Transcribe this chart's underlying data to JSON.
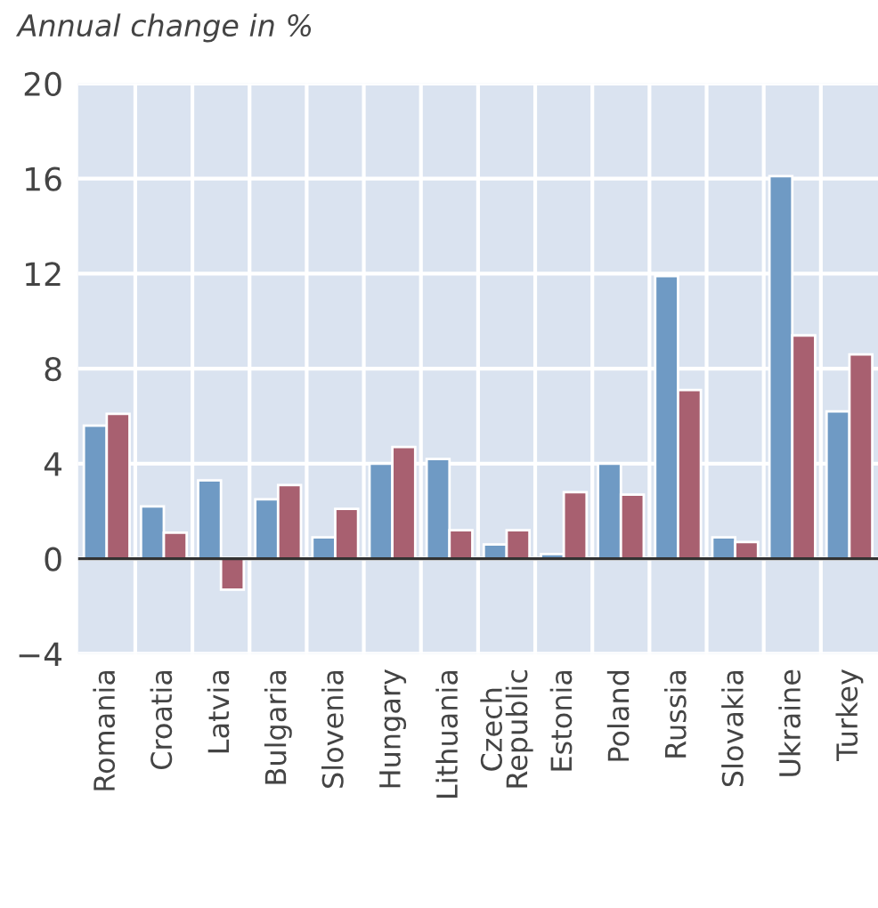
{
  "chart_data": {
    "type": "bar",
    "ylabel": "Annual change in %",
    "categories": [
      "Romania",
      "Croatia",
      "Latvia",
      "Bulgaria",
      "Slovenia",
      "Hungary",
      "Lithuania",
      "Czech Republic",
      "Estonia",
      "Poland",
      "Russia",
      "Slovakia",
      "Ukraine",
      "Turkey"
    ],
    "series": [
      {
        "color": "#6f9ac4",
        "values": [
          5.6,
          2.2,
          3.3,
          2.5,
          0.9,
          4.0,
          4.2,
          0.6,
          0.2,
          4.0,
          11.9,
          0.9,
          16.1,
          6.2
        ]
      },
      {
        "color": "#a86070",
        "values": [
          6.1,
          1.1,
          -1.3,
          3.1,
          2.1,
          4.7,
          1.2,
          1.2,
          2.8,
          2.7,
          7.1,
          0.7,
          9.4,
          8.6
        ]
      }
    ],
    "ylim": [
      -4,
      20
    ],
    "yticks": [
      {
        "value": -4,
        "label": "−4"
      },
      0,
      4,
      8,
      12,
      16,
      20
    ],
    "ref_lines": [
      {
        "axis": "y",
        "value": 0,
        "color": "#333333"
      }
    ],
    "grid": true,
    "legend": false
  }
}
